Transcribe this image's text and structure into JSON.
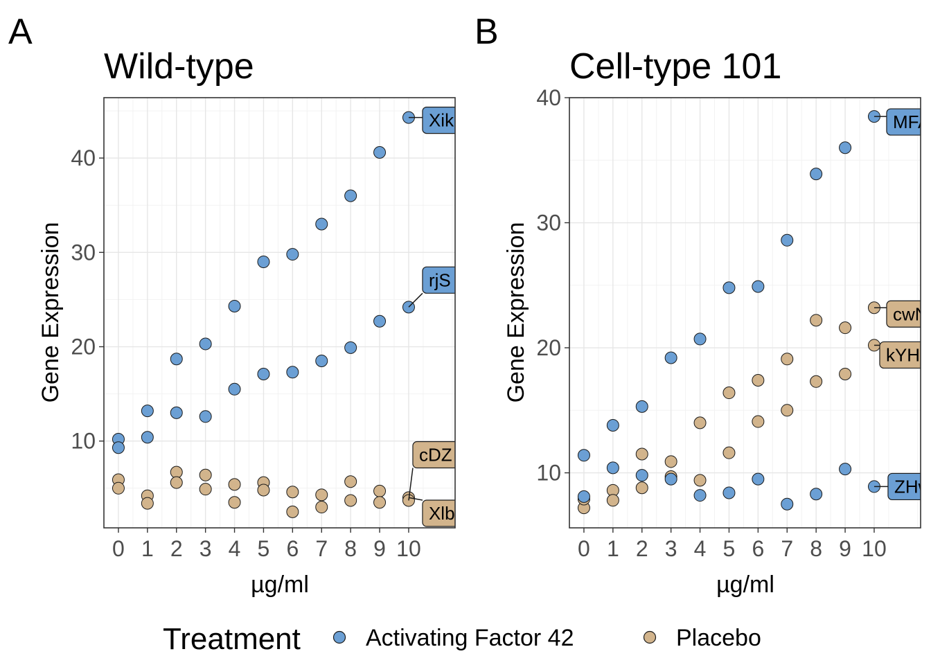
{
  "chart_data": [
    {
      "type": "scatter",
      "panel_tag": "A",
      "title": "Wild-type",
      "xlabel": "µg/ml",
      "ylabel": "Gene Expression",
      "xlim": [
        -0.5,
        11.6
      ],
      "ylim": [
        0.8,
        46.4
      ],
      "x_ticks": [
        "0",
        "1",
        "2",
        "3",
        "4",
        "5",
        "6",
        "7",
        "8",
        "9",
        "10"
      ],
      "y_ticks": [
        10,
        20,
        30,
        40
      ],
      "grid": true,
      "series": [
        {
          "name": "Activating Factor 42",
          "color": "#6b9fd4",
          "label": "Xik",
          "x": [
            0,
            1,
            2,
            3,
            4,
            5,
            6,
            7,
            8,
            9,
            10
          ],
          "y": [
            10.2,
            13.2,
            18.7,
            20.3,
            24.3,
            29.0,
            29.8,
            33.0,
            36.0,
            40.6,
            44.3
          ]
        },
        {
          "name": "Activating Factor 42",
          "color": "#6b9fd4",
          "label": "rjS",
          "x": [
            0,
            1,
            2,
            3,
            4,
            5,
            6,
            7,
            8,
            9,
            10
          ],
          "y": [
            9.3,
            10.4,
            13.0,
            12.6,
            15.5,
            17.1,
            17.3,
            18.5,
            19.9,
            22.7,
            24.2
          ]
        },
        {
          "name": "Placebo",
          "color": "#d2b48c",
          "label": "Xlb",
          "x": [
            0,
            1,
            2,
            3,
            4,
            5,
            6,
            7,
            8,
            9,
            10
          ],
          "y": [
            5.9,
            4.2,
            6.7,
            6.4,
            5.4,
            5.6,
            4.6,
            4.3,
            5.7,
            4.7,
            4.0
          ]
        },
        {
          "name": "Placebo",
          "color": "#d2b48c",
          "label": "cDZ",
          "x": [
            0,
            1,
            2,
            3,
            4,
            5,
            6,
            7,
            8,
            9,
            10
          ],
          "y": [
            5.0,
            3.4,
            5.6,
            4.9,
            3.5,
            4.8,
            2.5,
            3.0,
            3.7,
            3.5,
            3.7
          ]
        }
      ]
    },
    {
      "type": "scatter",
      "panel_tag": "B",
      "title": "Cell-type 101",
      "xlabel": "µg/ml",
      "ylabel": "Gene Expression",
      "xlim": [
        -0.5,
        11.6
      ],
      "ylim": [
        5.6,
        40.0
      ],
      "x_ticks": [
        "0",
        "1",
        "2",
        "3",
        "4",
        "5",
        "6",
        "7",
        "8",
        "9",
        "10"
      ],
      "y_ticks": [
        10,
        20,
        30,
        40
      ],
      "grid": true,
      "series": [
        {
          "name": "Activating Factor 42",
          "color": "#6b9fd4",
          "label": "MFA",
          "x": [
            0,
            1,
            2,
            3,
            4,
            5,
            6,
            7,
            8,
            9,
            10
          ],
          "y": [
            11.4,
            13.8,
            15.3,
            19.2,
            20.7,
            24.8,
            24.9,
            28.6,
            33.9,
            36.0,
            38.5
          ]
        },
        {
          "name": "Placebo",
          "color": "#d2b48c",
          "label": "cwN",
          "x": [
            0,
            1,
            2,
            3,
            4,
            5,
            6,
            7,
            8,
            9,
            10
          ],
          "y": [
            7.2,
            8.6,
            11.5,
            10.9,
            14.0,
            16.4,
            17.4,
            19.1,
            22.2,
            21.6,
            23.2
          ]
        },
        {
          "name": "Placebo",
          "color": "#d2b48c",
          "label": "kYH",
          "x": [
            0,
            1,
            2,
            3,
            4,
            5,
            6,
            7,
            8,
            9,
            10
          ],
          "y": [
            7.9,
            7.8,
            8.8,
            9.7,
            9.4,
            11.6,
            14.1,
            15.0,
            17.3,
            17.9,
            20.2
          ]
        },
        {
          "name": "Activating Factor 42",
          "color": "#6b9fd4",
          "label": "ZHw",
          "x": [
            0,
            1,
            2,
            3,
            4,
            5,
            6,
            7,
            8,
            9,
            10
          ],
          "y": [
            8.1,
            10.4,
            9.8,
            9.5,
            8.2,
            8.4,
            9.5,
            7.5,
            8.3,
            10.3,
            8.9
          ]
        }
      ]
    }
  ],
  "legend": {
    "title": "Treatment",
    "placement": "bottom",
    "items": [
      {
        "label": "Activating Factor 42",
        "color": "#6b9fd4"
      },
      {
        "label": "Placebo",
        "color": "#d2b48c"
      }
    ]
  }
}
